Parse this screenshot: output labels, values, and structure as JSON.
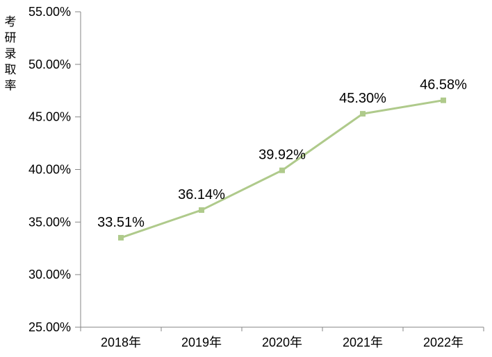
{
  "chart_data": {
    "type": "line",
    "title": "",
    "ylabel": "考研录取率",
    "xlabel": "",
    "categories": [
      "2018年",
      "2019年",
      "2020年",
      "2021年",
      "2022年"
    ],
    "series": [
      {
        "name": "考研录取率",
        "values": [
          33.51,
          36.14,
          39.92,
          45.3,
          46.58
        ]
      }
    ],
    "data_labels": [
      "33.51%",
      "36.14%",
      "39.92%",
      "45.30%",
      "46.58%"
    ],
    "y_axis": {
      "min": 25,
      "max": 55,
      "step": 5,
      "tick_labels": [
        "25.00%",
        "30.00%",
        "35.00%",
        "40.00%",
        "45.00%",
        "50.00%",
        "55.00%"
      ]
    },
    "grid": false,
    "legend_position": "none",
    "colors": {
      "line": "#afca8b",
      "marker": "#afca8b",
      "axis": "#868686",
      "text": "#000000",
      "background": "#ffffff"
    }
  }
}
